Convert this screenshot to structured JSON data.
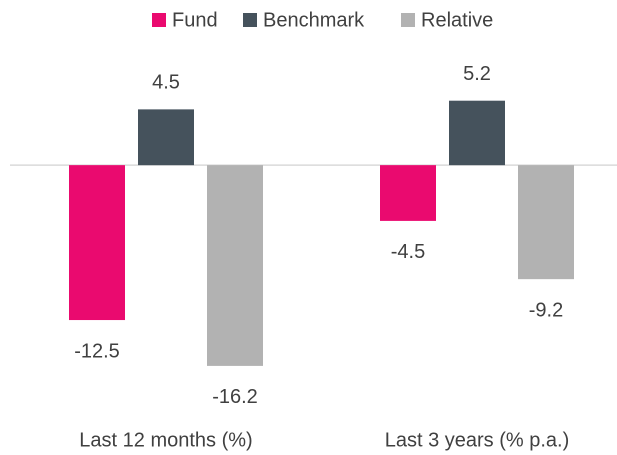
{
  "chart_data": {
    "type": "bar",
    "categories": [
      "Last 12 months (%)",
      "Last 3 years (% p.a.)"
    ],
    "series": [
      {
        "name": "Fund",
        "color": "#ea0a6f",
        "values": [
          -12.5,
          -4.5
        ]
      },
      {
        "name": "Benchmark",
        "color": "#45525c",
        "values": [
          4.5,
          5.2
        ]
      },
      {
        "name": "Relative",
        "color": "#b2b2b2",
        "values": [
          -16.2,
          -9.2
        ]
      }
    ],
    "ylim": [
      -20,
      8
    ],
    "legend": "top"
  }
}
